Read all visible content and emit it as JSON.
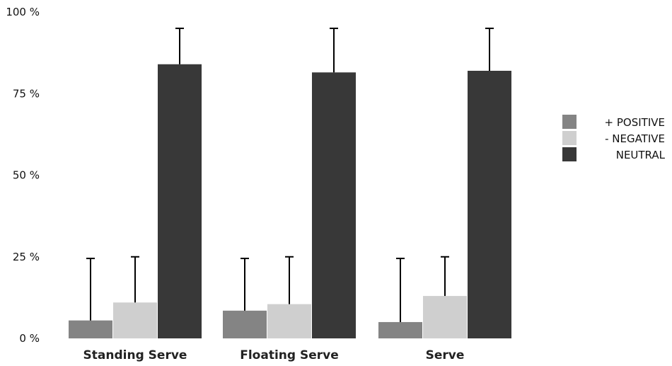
{
  "chart_data": {
    "type": "bar",
    "categories": [
      "Standing Serve",
      "Floating Serve",
      "Serve"
    ],
    "series": [
      {
        "name": "+ POSITIVE",
        "color": "#848484",
        "values": [
          5.5,
          8.5,
          5
        ],
        "error": [
          19,
          16,
          19.5
        ]
      },
      {
        "name": "- NEGATIVE",
        "color": "#cfcfcf",
        "values": [
          11,
          10.5,
          13
        ],
        "error": [
          14,
          14.5,
          12
        ]
      },
      {
        "name": "NEUTRAL",
        "color": "#383838",
        "values": [
          84,
          81.5,
          82
        ],
        "error": [
          11,
          13.5,
          13
        ]
      }
    ],
    "yticks": [
      0,
      25,
      50,
      75,
      100
    ],
    "ytick_labels": [
      "0 %",
      "25 %",
      "50 %",
      "75 %",
      "100 %"
    ],
    "ylim": [
      0,
      100
    ],
    "grid": false,
    "legend_position": "right"
  }
}
